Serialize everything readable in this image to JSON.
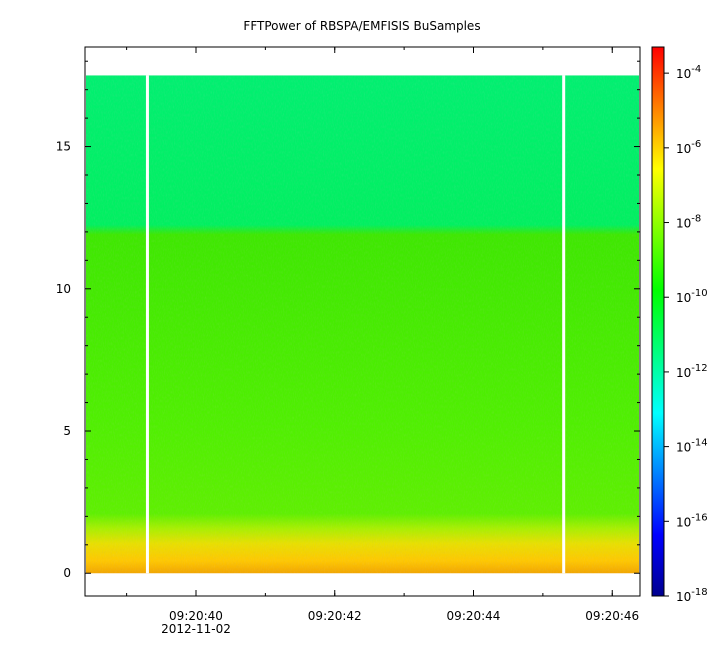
{
  "chart_data": {
    "type": "heatmap",
    "title": "FFTPower of RBSPA/EMFISIS  BuSamples",
    "xlabel": "",
    "ylabel": "",
    "x_range": [
      "09:20:38.4",
      "09:20:46.4"
    ],
    "x_ticks": [
      {
        "time": "09:20:40",
        "date": "2012-11-02"
      },
      {
        "time": "09:20:42",
        "date": ""
      },
      {
        "time": "09:20:44",
        "date": ""
      },
      {
        "time": "09:20:46",
        "date": ""
      }
    ],
    "y_range": [
      -0.8,
      18.5
    ],
    "y_ticks": [
      0,
      5,
      10,
      15
    ],
    "colorbar": {
      "scale": "log",
      "range_exponents": [
        -18,
        -3.3
      ],
      "ticks": [
        {
          "base": "10",
          "exp": "-4"
        },
        {
          "base": "10",
          "exp": "-6"
        },
        {
          "base": "10",
          "exp": "-8"
        },
        {
          "base": "10",
          "exp": "-10"
        },
        {
          "base": "10",
          "exp": "-12"
        },
        {
          "base": "10",
          "exp": "-14"
        },
        {
          "base": "10",
          "exp": "-16"
        },
        {
          "base": "10",
          "exp": "-18"
        }
      ],
      "colormap": [
        "#00008f",
        "#0000ff",
        "#0080ff",
        "#00ffff",
        "#00ff80",
        "#00ff00",
        "#80ff00",
        "#ffff00",
        "#ff8000",
        "#ff0000"
      ]
    },
    "data_gaps_time": [
      "09:20:39.3",
      "09:20:45.3"
    ],
    "bands": [
      {
        "freq_range": [
          0,
          0.4
        ],
        "log10_power": -7.8
      },
      {
        "freq_range": [
          0.4,
          1.3
        ],
        "log10_power": -8.5
      },
      {
        "freq_range": [
          1.3,
          2.0
        ],
        "log10_power": -9.3
      },
      {
        "freq_range": [
          2.0,
          12.2
        ],
        "log10_power": -10.1
      },
      {
        "freq_range": [
          12.2,
          17.5
        ],
        "log10_power": -11.6
      }
    ],
    "grid": false,
    "legend": "colorbar-right"
  }
}
